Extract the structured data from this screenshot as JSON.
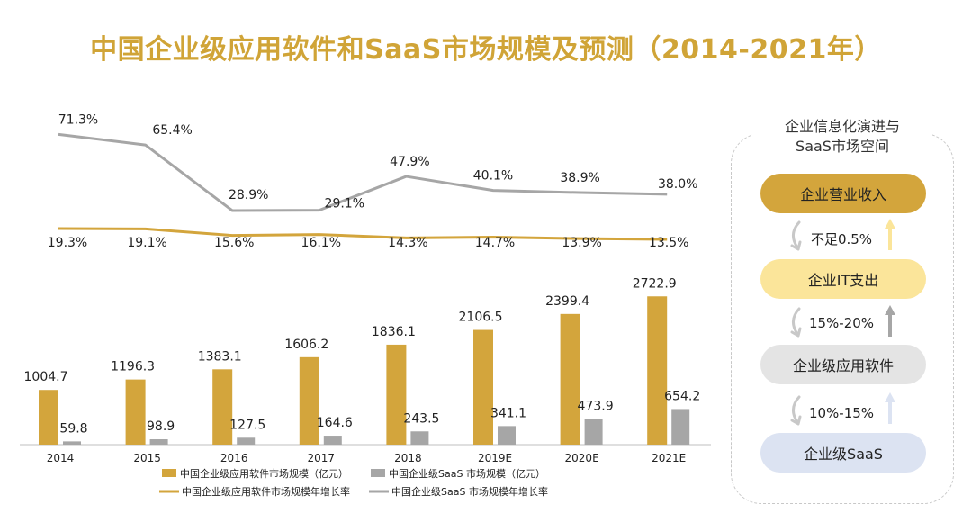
{
  "title": "中国企业级应用软件和SaaS市场规模及预测（2014-2021年）",
  "colors": {
    "title": "#D0A437",
    "software_bar": "#D3A53C",
    "saas_bar": "#A6A6A6",
    "software_line": "#D3A53C",
    "saas_line": "#A6A6A6",
    "pill_revenue": "#D3A53C",
    "pill_it": "#FBE59A",
    "pill_software": "#E4E4E4",
    "pill_saas": "#DCE3F2",
    "arrow_gold": "#FBE59A",
    "arrow_gray": "#A6A6A6",
    "arrow_blue": "#DCE3F2"
  },
  "chart_data": {
    "type": "bar",
    "categories": [
      "2014",
      "2015",
      "2016",
      "2017",
      "2018",
      "2019E",
      "2020E",
      "2021E"
    ],
    "series": [
      {
        "name": "中国企业级应用软件市场规模（亿元）",
        "type": "bar",
        "values": [
          1004.7,
          1196.3,
          1383.1,
          1606.2,
          1836.1,
          2106.5,
          2399.4,
          2722.9
        ]
      },
      {
        "name": "中国企业级SaaS 市场规模（亿元）",
        "type": "bar",
        "values": [
          59.8,
          98.9,
          127.5,
          164.6,
          243.5,
          341.1,
          473.9,
          654.2
        ]
      },
      {
        "name": "中国企业级应用软件市场规模年增长率",
        "type": "line",
        "values": [
          19.3,
          19.1,
          15.6,
          16.1,
          14.3,
          14.7,
          13.9,
          13.5
        ]
      },
      {
        "name": "中国企业级SaaS 市场规模年增长率",
        "type": "line",
        "values": [
          71.3,
          65.4,
          28.9,
          29.1,
          47.9,
          40.1,
          38.9,
          38.0
        ]
      }
    ],
    "software_labels": [
      "1004.7",
      "1196.3",
      "1383.1",
      "1606.2",
      "1836.1",
      "2106.5",
      "2399.4",
      "2722.9"
    ],
    "saas_labels": [
      "59.8",
      "98.9",
      "127.5",
      "164.6",
      "243.5",
      "341.1",
      "473.9",
      "654.2"
    ],
    "software_growth_labels": [
      "19.3%",
      "19.1%",
      "15.6%",
      "16.1%",
      "14.3%",
      "14.7%",
      "13.9%",
      "13.5%"
    ],
    "saas_growth_labels": [
      "71.3%",
      "65.4%",
      "28.9%",
      "29.1%",
      "47.9%",
      "40.1%",
      "38.9%",
      "38.0%"
    ],
    "legend": [
      "中国企业级应用软件市场规模（亿元）",
      "中国企业级SaaS 市场规模（亿元）",
      "中国企业级应用软件市场规模年增长率",
      "中国企业级SaaS 市场规模年增长率"
    ],
    "legend_position": "bottom",
    "grid": false
  },
  "panel": {
    "title_line1": "企业信息化演进与",
    "title_line2": "SaaS市场空间",
    "pills": [
      "企业营业收入",
      "企业IT支出",
      "企业级应用软件",
      "企业级SaaS"
    ],
    "ratios": [
      "不足0.5%",
      "15%-20%",
      "10%-15%"
    ],
    "icons": [
      "curved-arrow-icon",
      "up-arrow-icon"
    ]
  }
}
